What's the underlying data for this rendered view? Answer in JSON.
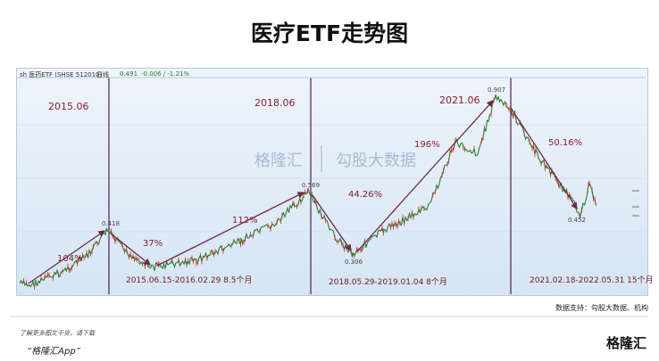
{
  "header": {
    "title": "医疗ETF走势图"
  },
  "chart": {
    "ticker": "sh 医药ETF (SHSE 512010)",
    "period": "日线",
    "price": "0.491",
    "change": "-0.006 / -1.21%",
    "years": [
      "2015.06",
      "2018.06",
      "2021.06"
    ],
    "gains": [
      "104%",
      "37%",
      "112%",
      "44.26%",
      "196%",
      "50.16%"
    ],
    "prices": [
      "0.418",
      "0.569",
      "0.306",
      "0.907",
      "0.452"
    ],
    "ranges": [
      "2015.06.15-2016.02.29  8.5个月",
      "2018.05.29-2019.01.04   8个月",
      "2021.02.18-2022.05.31   15个月"
    ],
    "watermark": [
      "格隆汇",
      "勾股大数据"
    ]
  },
  "footer": {
    "source": "数据支持：勾股大数据、机构",
    "promo": "了解更多图文干货，请下载",
    "app": "“格隆汇App”",
    "logo": "格隆汇"
  }
}
